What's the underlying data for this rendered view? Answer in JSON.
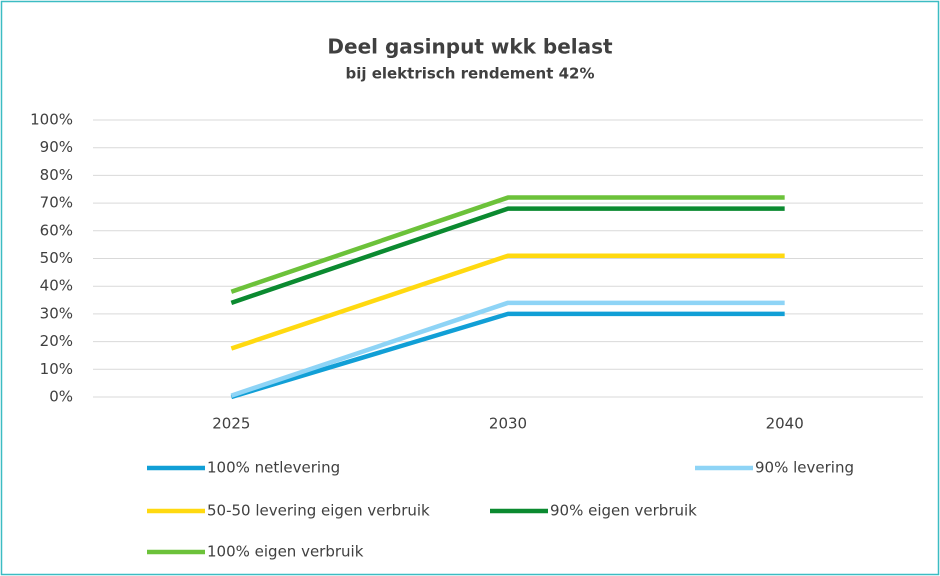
{
  "chart_data": {
    "type": "line",
    "title": "Deel gasinput wkk belast",
    "subtitle": "bij elektrisch rendement 42%",
    "categories": [
      "2025",
      "2030",
      "2040"
    ],
    "series": [
      {
        "name": "100% netlevering",
        "color": "#119fd6",
        "values": [
          0,
          30,
          30
        ]
      },
      {
        "name": "90% levering",
        "color": "#8ed4f6",
        "values": [
          0.5,
          34,
          34
        ]
      },
      {
        "name": "50-50 levering eigen verbruik",
        "color": "#ffd910",
        "values": [
          17.5,
          51,
          51
        ]
      },
      {
        "name": "90% eigen verbruik",
        "color": "#0b8a30",
        "values": [
          34,
          68,
          68
        ]
      },
      {
        "name": "100% eigen verbruik",
        "color": "#6cc23a",
        "values": [
          38,
          72,
          72
        ]
      }
    ],
    "ylim": [
      0,
      100
    ],
    "yticks": [
      {
        "value": 0,
        "label": "0%"
      },
      {
        "value": 10,
        "label": "10%"
      },
      {
        "value": 20,
        "label": "20%"
      },
      {
        "value": 30,
        "label": "30%"
      },
      {
        "value": 40,
        "label": "40%"
      },
      {
        "value": 50,
        "label": "50%"
      },
      {
        "value": 60,
        "label": "60%"
      },
      {
        "value": 70,
        "label": "70%"
      },
      {
        "value": 80,
        "label": "80%"
      },
      {
        "value": 90,
        "label": "90%"
      },
      {
        "value": 100,
        "label": "100%"
      }
    ],
    "grid": true
  }
}
